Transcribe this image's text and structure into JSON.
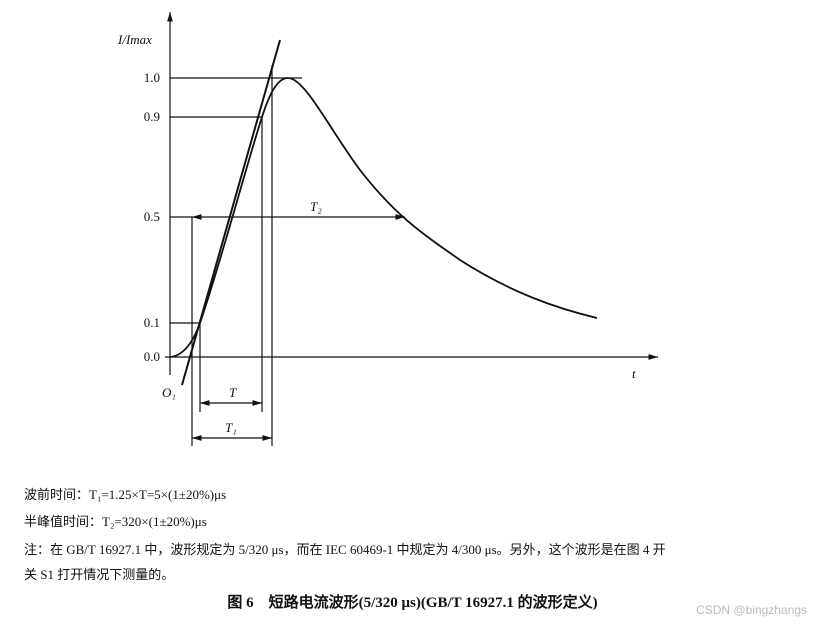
{
  "figure": {
    "y_axis_label": "I/Imax",
    "x_axis_label": "t",
    "origin_label": "O₁",
    "y_tick_labels": [
      "1.0",
      "0.9",
      "0.5",
      "0.1",
      "0.0"
    ],
    "interval_labels": {
      "T": "T",
      "T1": "T₁",
      "T2": "T₂"
    }
  },
  "notes": [
    "波前时间：T₁=1.25×T=5×(1±20%)μs",
    "半峰值时间：T₂=320×(1±20%)μs",
    "注：在 GB/T 16927.1 中，波形规定为 5/320 μs，而在 IEC 60469-1 中规定为 4/300 μs。另外，这个波形是在图 4 开",
    "关 S1 打开情况下测量的。"
  ],
  "caption": "图 6　短路电流波形(5/320 μs)(GB/T 16927.1 的波形定义)",
  "watermark": "CSDN @bingzhangs"
}
